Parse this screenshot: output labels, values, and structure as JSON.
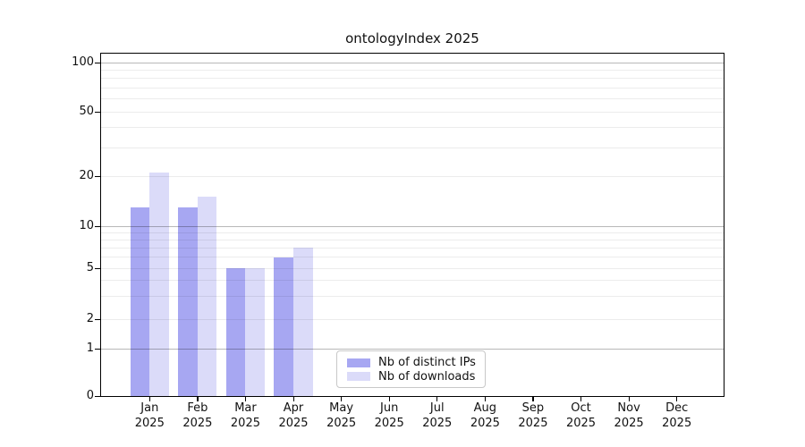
{
  "title": "ontologyIndex 2025",
  "chart_data": {
    "type": "bar",
    "title": "ontologyIndex 2025",
    "categories": [
      "Jan 2025",
      "Feb 2025",
      "Mar 2025",
      "Apr 2025",
      "May 2025",
      "Jun 2025",
      "Jul 2025",
      "Aug 2025",
      "Sep 2025",
      "Oct 2025",
      "Nov 2025",
      "Dec 2025"
    ],
    "series": [
      {
        "name": "Nb of distinct IPs",
        "color": "#a7a7f2",
        "values": [
          13,
          13,
          5,
          6,
          0,
          0,
          0,
          0,
          0,
          0,
          0,
          0
        ]
      },
      {
        "name": "Nb of downloads",
        "color": "#dbdbf9",
        "values": [
          21,
          15,
          5,
          7,
          0,
          0,
          0,
          0,
          0,
          0,
          0,
          0
        ]
      }
    ],
    "xlabel": "",
    "ylabel": "",
    "yscale": "log-like",
    "ylim": [
      0,
      115
    ],
    "yticks_labeled": [
      0,
      1,
      2,
      5,
      10,
      20,
      50,
      100
    ],
    "ytick_labels": [
      "0",
      "1",
      "2",
      "5",
      "10",
      "20",
      "50",
      "100"
    ],
    "major_grid_values": [
      1,
      10,
      100
    ],
    "minor_grid_values": [
      2,
      3,
      4,
      5,
      6,
      7,
      8,
      9,
      20,
      30,
      40,
      50,
      60,
      70,
      80,
      90
    ],
    "grid": true,
    "grid_over_bars": true,
    "legend_position": "inside-bottom-left-of-center",
    "legend_entries": [
      "Nb of distinct IPs",
      "Nb of downloads"
    ]
  },
  "colors": {
    "bar_dark": "#a7a7f2",
    "bar_light": "#dbdbf9",
    "spine": "#000000",
    "text": "#111111",
    "legend_border": "#c8c8c8"
  }
}
